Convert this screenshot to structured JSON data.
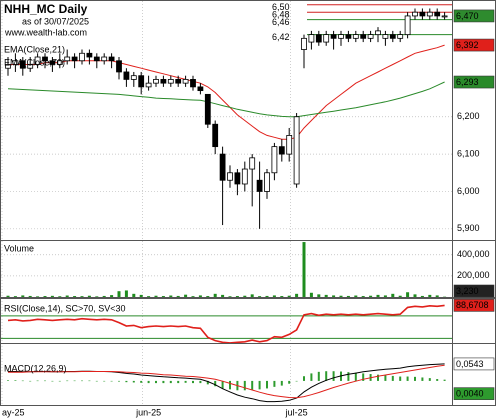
{
  "chart_data": [
    {
      "type": "candlestick",
      "title": "NHH_MC Daily",
      "subtitle": "as of 30/07/2025",
      "source": "www.wealth-lab.com",
      "categories": [
        "ay-25",
        null,
        null,
        null,
        null,
        null,
        null,
        null,
        null,
        null,
        null,
        null,
        null,
        null,
        null,
        null,
        null,
        null,
        null,
        "jun-25",
        null,
        null,
        null,
        null,
        null,
        null,
        null,
        null,
        null,
        null,
        null,
        null,
        null,
        null,
        null,
        null,
        null,
        null,
        null,
        "jul-25",
        null,
        null,
        null,
        null,
        null,
        null,
        null,
        null,
        null,
        null,
        null,
        null,
        null,
        null,
        null,
        null,
        null,
        null,
        null,
        null
      ],
      "open": [
        6.33,
        6.34,
        6.35,
        6.33,
        6.34,
        6.36,
        6.35,
        6.34,
        6.35,
        6.36,
        6.35,
        6.37,
        6.36,
        6.35,
        6.36,
        6.35,
        6.32,
        6.3,
        6.31,
        6.28,
        6.29,
        6.3,
        6.29,
        6.3,
        6.29,
        6.3,
        6.28,
        6.26,
        6.18,
        6.1,
        6.03,
        6.05,
        6.02,
        6.06,
        6.03,
        6.0,
        6.05,
        6.12,
        6.1,
        6.02,
        6.38,
        6.4,
        6.42,
        6.4,
        6.42,
        6.41,
        6.42,
        6.41,
        6.42,
        6.41,
        6.42,
        6.41,
        6.42,
        6.41,
        6.42,
        6.47,
        6.48,
        6.47,
        6.48,
        6.47
      ],
      "high": [
        6.36,
        6.37,
        6.36,
        6.36,
        6.37,
        6.37,
        6.36,
        6.37,
        6.38,
        6.37,
        6.38,
        6.38,
        6.37,
        6.37,
        6.37,
        6.36,
        6.33,
        6.32,
        6.32,
        6.31,
        6.31,
        6.31,
        6.31,
        6.31,
        6.31,
        6.31,
        6.29,
        6.26,
        6.19,
        6.12,
        6.07,
        6.06,
        6.08,
        6.1,
        6.08,
        6.06,
        6.13,
        6.14,
        6.17,
        6.21,
        6.42,
        6.43,
        6.43,
        6.43,
        6.43,
        6.43,
        6.43,
        6.43,
        6.43,
        6.43,
        6.44,
        6.43,
        6.43,
        6.43,
        6.48,
        6.49,
        6.49,
        6.49,
        6.49,
        6.48
      ],
      "low": [
        6.31,
        6.32,
        6.31,
        6.32,
        6.33,
        6.33,
        6.32,
        6.33,
        6.34,
        6.33,
        6.34,
        6.34,
        6.33,
        6.34,
        6.33,
        6.3,
        6.28,
        6.28,
        6.26,
        6.27,
        6.28,
        6.28,
        6.28,
        6.28,
        6.28,
        6.27,
        6.26,
        6.17,
        6.1,
        5.91,
        6.01,
        5.99,
        6.0,
        5.96,
        5.9,
        5.98,
        6.03,
        6.08,
        6.08,
        6.01,
        6.33,
        6.38,
        6.39,
        6.39,
        6.38,
        6.39,
        6.4,
        6.4,
        6.4,
        6.4,
        6.4,
        6.39,
        6.4,
        6.4,
        6.41,
        6.46,
        6.46,
        6.46,
        6.46,
        6.46
      ],
      "close": [
        6.34,
        6.35,
        6.33,
        6.34,
        6.36,
        6.35,
        6.34,
        6.35,
        6.36,
        6.35,
        6.37,
        6.36,
        6.35,
        6.36,
        6.35,
        6.32,
        6.3,
        6.31,
        6.28,
        6.29,
        6.3,
        6.29,
        6.3,
        6.29,
        6.3,
        6.28,
        6.27,
        6.18,
        6.12,
        6.03,
        6.05,
        6.02,
        6.06,
        6.09,
        6.0,
        6.05,
        6.12,
        6.1,
        6.15,
        6.2,
        6.41,
        6.42,
        6.4,
        6.42,
        6.41,
        6.42,
        6.41,
        6.42,
        6.41,
        6.42,
        6.43,
        6.42,
        6.41,
        6.42,
        6.47,
        6.48,
        6.47,
        6.48,
        6.47,
        6.47
      ],
      "last_label": "6,470",
      "last_color": "#2e8b2e",
      "up_color": "#ffffff",
      "down_color": "#000000",
      "series": [
        {
          "name": "EMA(Close,21)",
          "color": "#e0201b",
          "last_label": "6,392",
          "values": [
            6.34,
            6.34,
            6.34,
            6.34,
            6.34,
            6.345,
            6.345,
            6.345,
            6.35,
            6.35,
            6.35,
            6.35,
            6.35,
            6.35,
            6.35,
            6.345,
            6.34,
            6.335,
            6.33,
            6.325,
            6.32,
            6.315,
            6.31,
            6.305,
            6.3,
            6.295,
            6.29,
            6.28,
            6.265,
            6.245,
            6.225,
            6.205,
            6.19,
            6.175,
            6.16,
            6.15,
            6.145,
            6.14,
            6.14,
            6.145,
            6.17,
            6.19,
            6.21,
            6.23,
            6.245,
            6.26,
            6.275,
            6.29,
            6.3,
            6.31,
            6.32,
            6.33,
            6.34,
            6.35,
            6.36,
            6.37,
            6.375,
            6.38,
            6.385,
            6.392
          ]
        },
        {
          "name": "EMA(Close,70)",
          "color": "#2a8a2a",
          "last_label": "6,293",
          "values": [
            6.275,
            6.274,
            6.273,
            6.272,
            6.271,
            6.27,
            6.269,
            6.268,
            6.267,
            6.266,
            6.265,
            6.264,
            6.263,
            6.262,
            6.261,
            6.26,
            6.258,
            6.256,
            6.254,
            6.252,
            6.25,
            6.249,
            6.248,
            6.247,
            6.246,
            6.245,
            6.244,
            6.24,
            6.235,
            6.23,
            6.225,
            6.22,
            6.216,
            6.212,
            6.208,
            6.205,
            6.203,
            6.201,
            6.2,
            6.2,
            6.203,
            6.206,
            6.209,
            6.212,
            6.215,
            6.218,
            6.221,
            6.224,
            6.228,
            6.232,
            6.236,
            6.24,
            6.245,
            6.25,
            6.256,
            6.262,
            6.268,
            6.275,
            6.284,
            6.293
          ]
        }
      ],
      "levels": [
        {
          "value": 6.5,
          "label": "6,50",
          "color": "#d02020"
        },
        {
          "value": 6.48,
          "label": "6,48",
          "color": "#d02020"
        },
        {
          "value": 6.46,
          "label": "6,46",
          "color": "#2a8a2a"
        },
        {
          "value": 6.42,
          "label": "6,42",
          "color": "#2a8a2a"
        }
      ],
      "ylim": [
        5.87,
        6.51
      ],
      "yticks": [
        {
          "value": 5.9,
          "label": "5,900"
        },
        {
          "value": 6.0,
          "label": "6,000"
        },
        {
          "value": 6.1,
          "label": "6,100"
        },
        {
          "value": 6.2,
          "label": "6,200"
        }
      ],
      "grid": true
    },
    {
      "type": "bar",
      "title": "Volume",
      "color": "#1e8c1e",
      "last_label": "3,230",
      "last_color": "#222222",
      "values": [
        12000,
        8000,
        15000,
        10000,
        6000,
        9000,
        11000,
        7000,
        14000,
        9000,
        8000,
        12000,
        6000,
        10000,
        18000,
        55000,
        62000,
        30000,
        20000,
        8000,
        12000,
        9000,
        14000,
        10000,
        22000,
        8000,
        15000,
        9000,
        30000,
        20000,
        7000,
        9000,
        12000,
        25000,
        8000,
        10000,
        15000,
        9000,
        12000,
        30000,
        520000,
        40000,
        25000,
        20000,
        15000,
        12000,
        10000,
        14000,
        9000,
        12000,
        20000,
        15000,
        30000,
        12000,
        45000,
        25000,
        10000,
        20000,
        15000,
        3230
      ],
      "ylim": [
        0,
        530000
      ],
      "yticks": [
        {
          "value": 200000,
          "label": "200,000"
        },
        {
          "value": 400000,
          "label": "400,000"
        }
      ],
      "grid": true
    },
    {
      "type": "line",
      "title": "RSI(Close,14), SC>70, SV<30",
      "color": "#e0201b",
      "last_label": "88,6708",
      "values": [
        62,
        63,
        61,
        62,
        64,
        63,
        62,
        63,
        64,
        63,
        65,
        64,
        63,
        64,
        63,
        58,
        52,
        53,
        49,
        51,
        52,
        51,
        52,
        51,
        52,
        49,
        48,
        32,
        26,
        23,
        22,
        23,
        24,
        27,
        24,
        26,
        33,
        32,
        37,
        45,
        72,
        74,
        71,
        73,
        72,
        73,
        72,
        73,
        72,
        73,
        74,
        73,
        72,
        73,
        85,
        87,
        86,
        88,
        87,
        88.6708
      ],
      "levels": [
        70,
        30
      ],
      "level_color": "#2a8a2a",
      "ylim": [
        20,
        100
      ]
    },
    {
      "type": "line",
      "title": "MACD(12,26,9)",
      "series": [
        {
          "color": "#000000",
          "last_label": "0,0543",
          "last_color": "#ffffff",
          "values": [
            0.03,
            0.03,
            0.029,
            0.029,
            0.03,
            0.03,
            0.029,
            0.029,
            0.03,
            0.03,
            0.031,
            0.031,
            0.03,
            0.03,
            0.029,
            0.027,
            0.024,
            0.022,
            0.019,
            0.017,
            0.015,
            0.013,
            0.012,
            0.01,
            0.009,
            0.007,
            0.005,
            -0.002,
            -0.012,
            -0.025,
            -0.035,
            -0.045,
            -0.052,
            -0.057,
            -0.063,
            -0.066,
            -0.066,
            -0.065,
            -0.062,
            -0.055,
            -0.035,
            -0.02,
            -0.008,
            0.002,
            0.01,
            0.016,
            0.021,
            0.025,
            0.029,
            0.032,
            0.035,
            0.037,
            0.039,
            0.041,
            0.045,
            0.048,
            0.05,
            0.052,
            0.053,
            0.0543
          ]
        },
        {
          "color": "#e0201b",
          "values": [
            0.028,
            0.028,
            0.028,
            0.029,
            0.029,
            0.029,
            0.029,
            0.029,
            0.029,
            0.029,
            0.03,
            0.03,
            0.03,
            0.03,
            0.03,
            0.029,
            0.028,
            0.027,
            0.025,
            0.024,
            0.022,
            0.02,
            0.019,
            0.017,
            0.015,
            0.014,
            0.012,
            0.009,
            0.005,
            -0.001,
            -0.008,
            -0.015,
            -0.022,
            -0.029,
            -0.036,
            -0.042,
            -0.047,
            -0.05,
            -0.053,
            -0.054,
            -0.05,
            -0.044,
            -0.037,
            -0.029,
            -0.021,
            -0.014,
            -0.007,
            -0.001,
            0.005,
            0.01,
            0.015,
            0.019,
            0.023,
            0.027,
            0.031,
            0.035,
            0.039,
            0.043,
            0.047,
            0.05
          ]
        }
      ],
      "histogram": {
        "color": "#2e9b2e",
        "last_label": "0,0040",
        "values": [
          0.002,
          0.002,
          0.001,
          0,
          0.001,
          0.001,
          0,
          0,
          0.001,
          0.001,
          0.001,
          0.001,
          0,
          0,
          -0.001,
          -0.002,
          -0.004,
          -0.005,
          -0.006,
          -0.007,
          -0.007,
          -0.007,
          -0.007,
          -0.007,
          -0.006,
          -0.007,
          -0.007,
          -0.011,
          -0.017,
          -0.024,
          -0.027,
          -0.03,
          -0.03,
          -0.028,
          -0.027,
          -0.024,
          -0.019,
          -0.015,
          -0.009,
          -0.001,
          0.015,
          0.024,
          0.029,
          0.031,
          0.031,
          0.03,
          0.028,
          0.026,
          0.024,
          0.022,
          0.02,
          0.018,
          0.016,
          0.014,
          0.014,
          0.013,
          0.011,
          0.009,
          0.006,
          0.004
        ]
      },
      "ylim": [
        -0.077,
        0.118
      ]
    }
  ]
}
